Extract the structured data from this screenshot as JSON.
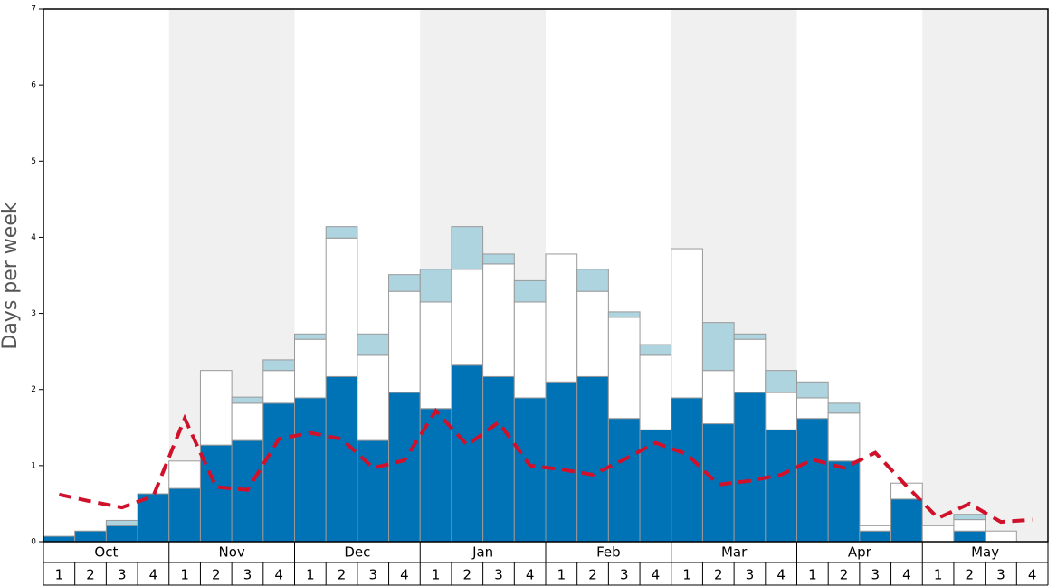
{
  "chart_data": {
    "type": "stacked_bar",
    "y_label": "Days per week",
    "months": [
      "Oct",
      "Nov",
      "Dec",
      "Jan",
      "Feb",
      "Mar",
      "Apr",
      "May"
    ],
    "weeks": [
      1,
      2,
      3,
      4
    ],
    "ylim": [
      0,
      7
    ],
    "yticks": [
      0,
      1,
      2,
      3,
      4,
      5,
      6,
      7
    ],
    "series": [
      {
        "color": "#0073b7",
        "values": [
          0.07,
          0.14,
          0.21,
          0.63,
          0.7,
          1.27,
          1.33,
          1.82,
          1.89,
          2.17,
          1.33,
          1.96,
          1.75,
          2.32,
          2.17,
          1.89,
          2.1,
          2.17,
          1.62,
          1.47,
          1.89,
          1.55,
          1.96,
          1.47,
          1.62,
          1.06,
          0.14,
          0.56,
          0,
          0.14,
          0,
          0
        ]
      },
      {
        "color": "#ffffff",
        "values": [
          0,
          0,
          0,
          0,
          0.36,
          0.98,
          0.49,
          0.43,
          0.77,
          1.82,
          1.12,
          1.33,
          1.4,
          1.26,
          1.48,
          1.26,
          1.68,
          1.12,
          1.33,
          0.98,
          1.96,
          0.7,
          0.7,
          0.49,
          0.27,
          0.63,
          0.07,
          0.21,
          0.21,
          0.15,
          0.14,
          0
        ]
      },
      {
        "color": "#aed4e0",
        "values": [
          0,
          0,
          0.07,
          0,
          0,
          0,
          0.08,
          0.14,
          0.07,
          0.15,
          0.28,
          0.22,
          0.43,
          0.56,
          0.13,
          0.28,
          0,
          0.29,
          0.07,
          0.14,
          0,
          0.63,
          0.07,
          0.29,
          0.21,
          0.13,
          0,
          0,
          0,
          0.07,
          0,
          0
        ]
      }
    ],
    "line": {
      "color": "#d0112b",
      "values": [
        0.62,
        0.53,
        0.45,
        0.6,
        1.62,
        0.72,
        0.68,
        1.35,
        1.43,
        1.35,
        0.97,
        1.07,
        1.72,
        1.27,
        1.57,
        1.0,
        0.95,
        0.88,
        1.08,
        1.3,
        1.15,
        0.75,
        0.8,
        0.88,
        1.08,
        0.97,
        1.17,
        0.73,
        0.31,
        0.5,
        0.26,
        0.29
      ]
    }
  }
}
